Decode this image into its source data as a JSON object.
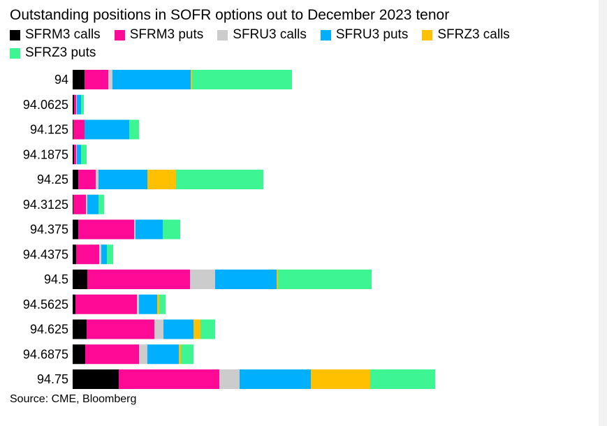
{
  "chart_data": {
    "type": "bar",
    "orientation": "horizontal",
    "stacked": true,
    "title": "Outstanding positions in SOFR options out to December 2023 tenor",
    "source": "Source: CME, Bloomberg",
    "grid": false,
    "legend_position": "top",
    "x_axis_labels_shown": false,
    "categories": [
      "94",
      "94.0625",
      "94.125",
      "94.1875",
      "94.25",
      "94.3125",
      "94.375",
      "94.4375",
      "94.5",
      "94.5625",
      "94.625",
      "94.6875",
      "94.75"
    ],
    "series": [
      {
        "name": "SFRM3 calls",
        "color": "#000000",
        "values": [
          17,
          2,
          1,
          2,
          8,
          1,
          8,
          5,
          21,
          4,
          20,
          18,
          66
        ]
      },
      {
        "name": "SFRM3 puts",
        "color": "#ff0a96",
        "values": [
          34,
          3,
          16,
          3,
          25,
          18,
          80,
          33,
          147,
          88,
          97,
          77,
          144
        ]
      },
      {
        "name": "SFRU3 calls",
        "color": "#cccccc",
        "values": [
          6,
          1,
          0,
          1,
          4,
          2,
          2,
          3,
          36,
          3,
          13,
          12,
          29
        ]
      },
      {
        "name": "SFRU3 puts",
        "color": "#00b0ff",
        "values": [
          112,
          6,
          64,
          6,
          70,
          16,
          39,
          8,
          88,
          26,
          43,
          45,
          102
        ]
      },
      {
        "name": "SFRZ3 calls",
        "color": "#ffc000",
        "values": [
          2,
          0,
          0,
          0,
          41,
          0,
          0,
          0,
          2,
          3,
          10,
          3,
          85
        ]
      },
      {
        "name": "SFRZ3 puts",
        "color": "#3ef594",
        "values": [
          143,
          4,
          14,
          8,
          125,
          8,
          25,
          9,
          134,
          9,
          21,
          18,
          93
        ]
      }
    ]
  }
}
